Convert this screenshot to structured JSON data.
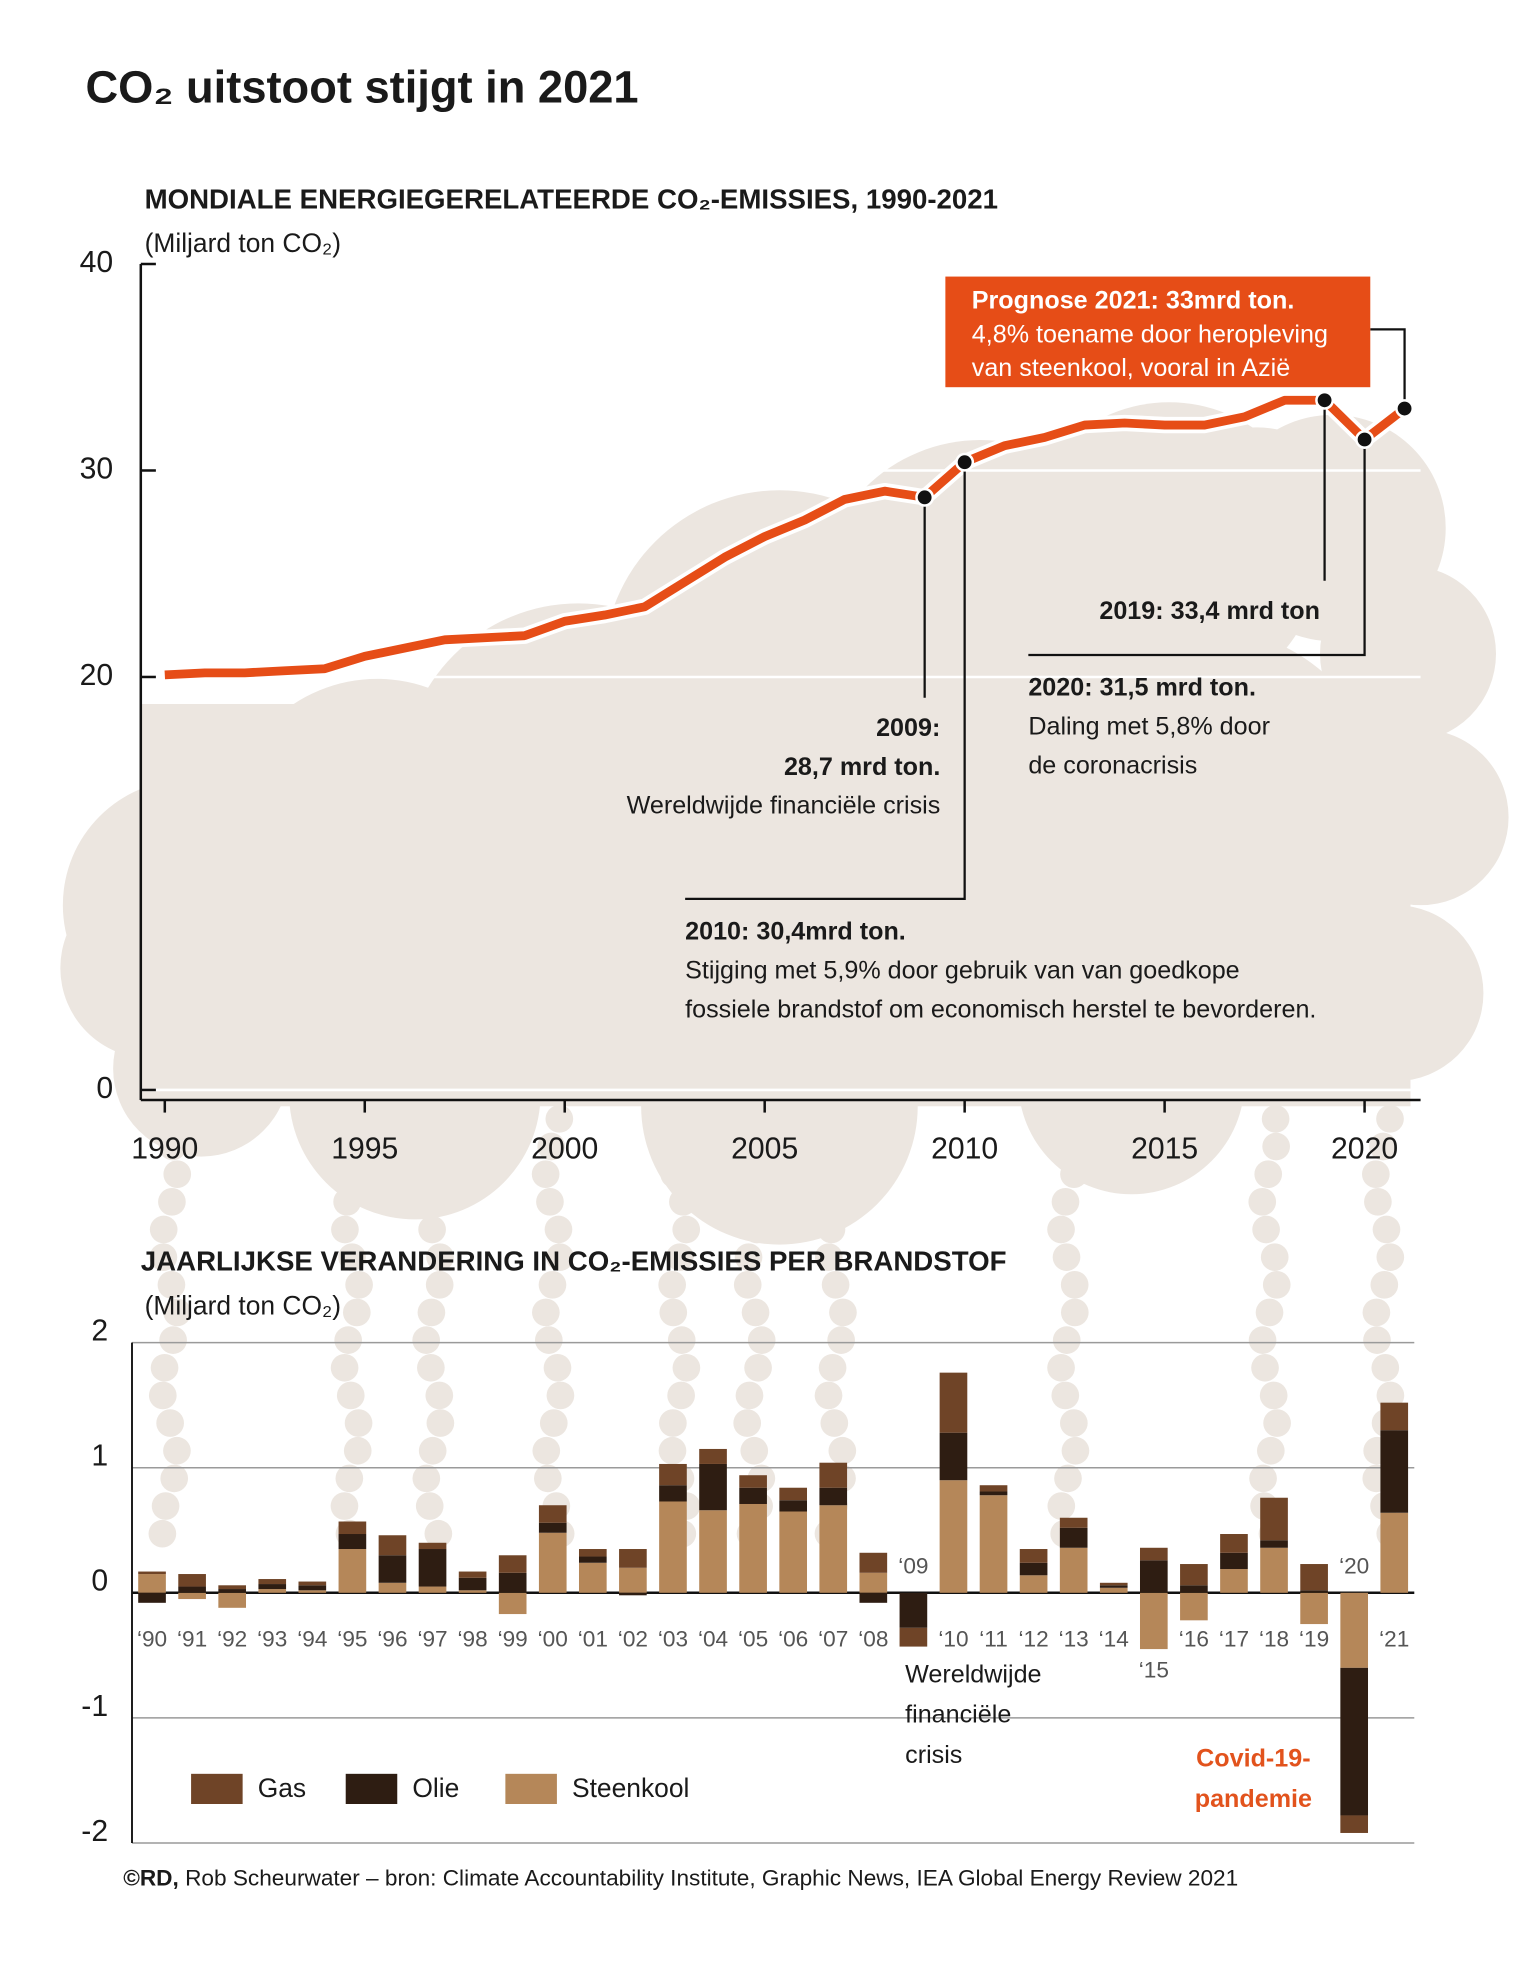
{
  "title": "CO₂ uitstoot stijgt in 2021",
  "chart_data": [
    {
      "type": "line",
      "subtitle": "MONDIALE ENERGIEGERELATEERDE CO₂-EMISSIES, 1990-2021",
      "y_label": "(Miljard ton CO₂)",
      "x": [
        1990,
        1991,
        1992,
        1993,
        1994,
        1995,
        1996,
        1997,
        1998,
        1999,
        2000,
        2001,
        2002,
        2003,
        2004,
        2005,
        2006,
        2007,
        2008,
        2009,
        2010,
        2011,
        2012,
        2013,
        2014,
        2015,
        2016,
        2017,
        2018,
        2019,
        2020,
        2021
      ],
      "values": [
        20.1,
        20.2,
        20.2,
        20.3,
        20.4,
        21.0,
        21.4,
        21.8,
        21.9,
        22.0,
        22.7,
        23.0,
        23.4,
        24.6,
        25.8,
        26.8,
        27.6,
        28.6,
        29.0,
        28.7,
        30.4,
        31.2,
        31.6,
        32.2,
        32.3,
        32.2,
        32.2,
        32.6,
        33.4,
        33.4,
        31.5,
        33.0
      ],
      "color": "#e64d17",
      "xlim": [
        1989.4,
        2021.4
      ],
      "xticks": [
        1990,
        1995,
        2000,
        2005,
        2010,
        2015,
        2020
      ],
      "ylim": [
        0,
        40
      ],
      "yticks": [
        0,
        20,
        30,
        40
      ],
      "grid": true,
      "markers": [
        2009,
        2010,
        2019,
        2020,
        2021
      ],
      "annotations": [
        {
          "heading": [
            "2009:",
            "28,7 mrd ton."
          ],
          "text": [
            "Wereldwijde financiële crisis"
          ]
        },
        {
          "heading": [
            "2010: 30,4mrd ton."
          ],
          "text": [
            "Stijging met 5,9% door gebruik van van goedkope",
            "fossiele brandstof om economisch herstel te bevorderen."
          ]
        },
        {
          "heading": [
            "2019: 33,4 mrd ton"
          ],
          "text": []
        },
        {
          "heading": [
            "2020: 31,5 mrd ton."
          ],
          "text": [
            "Daling met 5,8% door",
            "de coronacrisis"
          ]
        },
        {
          "heading": [
            "Prognose 2021: 33mrd ton."
          ],
          "text": [
            "4,8% toename door heropleving",
            "van steenkool, vooral in Azië"
          ],
          "box_color": "#e64d17"
        }
      ]
    },
    {
      "type": "bar",
      "subtitle": "JAARLIJKSE VERANDERING IN CO₂-EMISSIES PER BRANDSTOF",
      "y_label": "(Miljard ton CO₂)",
      "categories": [
        "‘90",
        "‘91",
        "‘92",
        "‘93",
        "‘94",
        "‘95",
        "‘96",
        "‘97",
        "‘98",
        "‘99",
        "‘00",
        "‘01",
        "‘02",
        "‘03",
        "‘04",
        "‘05",
        "‘06",
        "‘07",
        "‘08",
        "‘09",
        "‘10",
        "‘11",
        "‘12",
        "‘13",
        "‘14",
        "‘15",
        "‘16",
        "‘17",
        "‘18",
        "‘19",
        "‘20",
        "‘21"
      ],
      "series": [
        {
          "name": "Gas",
          "color": "#6f4427",
          "values": [
            0.02,
            0.1,
            0.03,
            0.04,
            0.03,
            0.1,
            0.16,
            0.05,
            0.05,
            0.14,
            0.14,
            0.06,
            0.15,
            0.17,
            0.12,
            0.1,
            0.1,
            0.2,
            0.16,
            -0.15,
            0.48,
            0.05,
            0.11,
            0.08,
            0.02,
            0.1,
            0.17,
            0.15,
            0.34,
            0.21,
            -0.14,
            0.22
          ]
        },
        {
          "name": "Olie",
          "color": "#2e1d12",
          "values": [
            -0.08,
            0.05,
            0.03,
            0.04,
            0.04,
            0.12,
            0.22,
            0.3,
            0.1,
            0.16,
            0.08,
            0.05,
            -0.02,
            0.13,
            0.37,
            0.13,
            0.09,
            0.14,
            -0.08,
            -0.28,
            0.38,
            0.03,
            0.1,
            0.16,
            0.02,
            0.26,
            0.06,
            0.13,
            0.06,
            0.02,
            -1.18,
            0.66
          ]
        },
        {
          "name": "Steenkool",
          "color": "#b58759",
          "values": [
            0.15,
            -0.05,
            -0.12,
            0.03,
            0.02,
            0.35,
            0.08,
            0.05,
            0.02,
            -0.17,
            0.48,
            0.24,
            0.2,
            0.73,
            0.66,
            0.71,
            0.65,
            0.7,
            0.16,
            0.0,
            0.9,
            0.78,
            0.14,
            0.36,
            0.04,
            -0.45,
            -0.22,
            0.19,
            0.36,
            -0.25,
            -0.6,
            0.64
          ]
        }
      ],
      "ylim": [
        -2,
        2
      ],
      "yticks": [
        -2,
        -1,
        0,
        1,
        2
      ],
      "grid": true,
      "annotations": [
        {
          "heading": [],
          "text": [
            "Wereldwijde",
            "financiële",
            "crisis"
          ]
        },
        {
          "heading": [
            "Covid-19-",
            "pandemie"
          ],
          "text": [],
          "color": "#e2531d"
        }
      ]
    }
  ],
  "footer": {
    "credit": "©RD,",
    "text": "Rob Scheurwater – bron: Climate Accountability Institute, Graphic News, IEA Global Energy Review 2021"
  }
}
